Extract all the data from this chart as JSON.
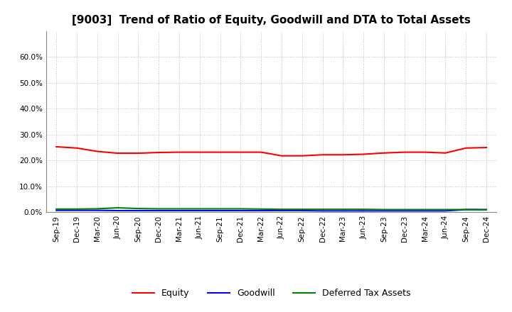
{
  "title": "[9003]  Trend of Ratio of Equity, Goodwill and DTA to Total Assets",
  "x_labels": [
    "Sep-19",
    "Dec-19",
    "Mar-20",
    "Jun-20",
    "Sep-20",
    "Dec-20",
    "Mar-21",
    "Jun-21",
    "Sep-21",
    "Dec-21",
    "Mar-22",
    "Jun-22",
    "Sep-22",
    "Dec-22",
    "Mar-23",
    "Jun-23",
    "Sep-23",
    "Dec-23",
    "Mar-24",
    "Jun-24",
    "Sep-24",
    "Dec-24"
  ],
  "equity": [
    0.253,
    0.248,
    0.235,
    0.228,
    0.228,
    0.231,
    0.232,
    0.232,
    0.232,
    0.232,
    0.232,
    0.218,
    0.218,
    0.222,
    0.222,
    0.224,
    0.229,
    0.232,
    0.232,
    0.229,
    0.248,
    0.25
  ],
  "goodwill": [
    0.007,
    0.007,
    0.007,
    0.006,
    0.006,
    0.006,
    0.006,
    0.006,
    0.006,
    0.006,
    0.006,
    0.006,
    0.006,
    0.005,
    0.005,
    0.005,
    0.005,
    0.005,
    0.005,
    0.005,
    0.01,
    0.01
  ],
  "dta": [
    0.012,
    0.012,
    0.013,
    0.017,
    0.014,
    0.013,
    0.013,
    0.013,
    0.013,
    0.013,
    0.012,
    0.011,
    0.011,
    0.011,
    0.011,
    0.011,
    0.01,
    0.01,
    0.01,
    0.01,
    0.01,
    0.009
  ],
  "equity_color": "#FF0000",
  "goodwill_color": "#0000FF",
  "dta_color": "#008000",
  "ylim": [
    0.0,
    0.7
  ],
  "yticks": [
    0.0,
    0.1,
    0.2,
    0.3,
    0.4,
    0.5,
    0.6
  ],
  "background_color": "#FFFFFF",
  "plot_bg_color": "#FFFFFF",
  "grid_color": "#BBBBBB",
  "title_fontsize": 11,
  "tick_fontsize": 7.5,
  "legend_fontsize": 9
}
